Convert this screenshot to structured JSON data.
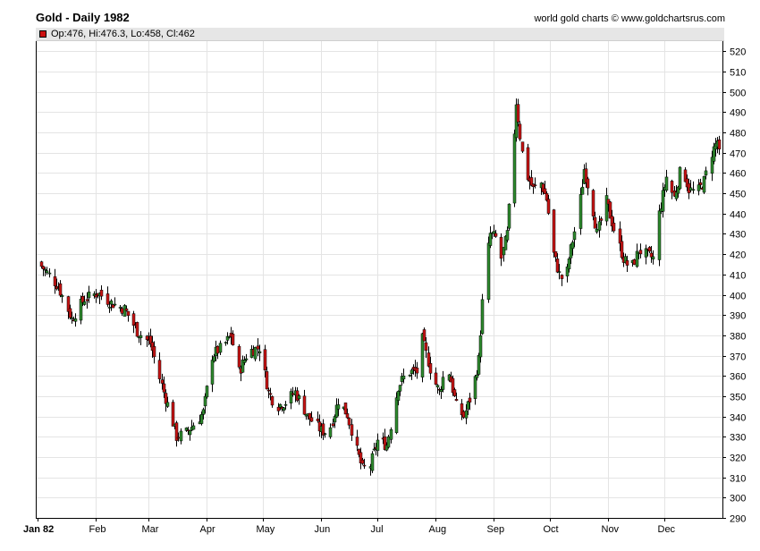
{
  "header": {
    "title": "Gold - Daily 1982",
    "credit": "world gold charts © www.goldchartsrus.com",
    "ohlc": "Op:476, Hi:476.3, Lo:458, Cl:462"
  },
  "colors": {
    "up": "#2e8b2e",
    "down": "#c81414",
    "grid": "#e4e4e4",
    "axis": "#000000"
  },
  "chart_data": {
    "type": "candlestick",
    "title": "Gold - Daily 1982",
    "ylim": [
      290,
      525
    ],
    "yticks": [
      290,
      300,
      310,
      320,
      330,
      340,
      350,
      360,
      370,
      380,
      390,
      400,
      410,
      420,
      430,
      440,
      450,
      460,
      470,
      480,
      490,
      500,
      510,
      520
    ],
    "xlim": [
      1,
      365
    ],
    "month_ticks": [
      {
        "label": "Jan 82",
        "day": 1
      },
      {
        "label": "Feb",
        "day": 32
      },
      {
        "label": "Mar",
        "day": 60
      },
      {
        "label": "Apr",
        "day": 91
      },
      {
        "label": "May",
        "day": 121
      },
      {
        "label": "Jun",
        "day": 152
      },
      {
        "label": "Jul",
        "day": 182
      },
      {
        "label": "Aug",
        "day": 213
      },
      {
        "label": "Sep",
        "day": 244
      },
      {
        "label": "Oct",
        "day": 274
      },
      {
        "label": "Nov",
        "day": 305
      },
      {
        "label": "Dec",
        "day": 335
      }
    ],
    "series_close": [
      [
        1,
        416
      ],
      [
        5,
        412
      ],
      [
        12,
        404
      ],
      [
        19,
        388
      ],
      [
        26,
        398
      ],
      [
        33,
        401
      ],
      [
        40,
        396
      ],
      [
        47,
        393
      ],
      [
        54,
        382
      ],
      [
        61,
        376
      ],
      [
        68,
        352
      ],
      [
        73,
        337
      ],
      [
        75,
        330
      ],
      [
        80,
        332
      ],
      [
        84,
        336
      ],
      [
        89,
        342
      ],
      [
        94,
        370
      ],
      [
        100,
        375
      ],
      [
        104,
        380
      ],
      [
        108,
        362
      ],
      [
        113,
        372
      ],
      [
        119,
        374
      ],
      [
        124,
        352
      ],
      [
        128,
        345
      ],
      [
        133,
        347
      ],
      [
        138,
        352
      ],
      [
        145,
        340
      ],
      [
        152,
        333
      ],
      [
        156,
        332
      ],
      [
        161,
        348
      ],
      [
        166,
        341
      ],
      [
        170,
        326
      ],
      [
        174,
        314
      ],
      [
        178,
        316
      ],
      [
        182,
        328
      ],
      [
        187,
        326
      ],
      [
        193,
        355
      ],
      [
        198,
        362
      ],
      [
        203,
        362
      ],
      [
        206,
        378
      ],
      [
        211,
        360
      ],
      [
        215,
        352
      ],
      [
        219,
        366
      ],
      [
        224,
        345
      ],
      [
        228,
        340
      ],
      [
        233,
        354
      ],
      [
        236,
        368
      ],
      [
        239,
        410
      ],
      [
        242,
        430
      ],
      [
        245,
        428
      ],
      [
        248,
        418
      ],
      [
        251,
        430
      ],
      [
        254,
        466
      ],
      [
        256,
        495
      ],
      [
        259,
        470
      ],
      [
        262,
        458
      ],
      [
        265,
        452
      ],
      [
        269,
        455
      ],
      [
        272,
        447
      ],
      [
        276,
        420
      ],
      [
        279,
        410
      ],
      [
        282,
        405
      ],
      [
        284,
        418
      ],
      [
        289,
        440
      ],
      [
        292,
        462
      ],
      [
        296,
        447
      ],
      [
        299,
        430
      ],
      [
        304,
        446
      ],
      [
        309,
        429
      ],
      [
        313,
        418
      ],
      [
        317,
        412
      ],
      [
        321,
        422
      ],
      [
        325,
        420
      ],
      [
        329,
        418
      ],
      [
        332,
        440
      ],
      [
        336,
        458
      ],
      [
        340,
        448
      ],
      [
        344,
        464
      ],
      [
        348,
        452
      ],
      [
        352,
        450
      ],
      [
        356,
        456
      ],
      [
        360,
        470
      ],
      [
        363,
        476
      ],
      [
        365,
        462
      ]
    ]
  }
}
